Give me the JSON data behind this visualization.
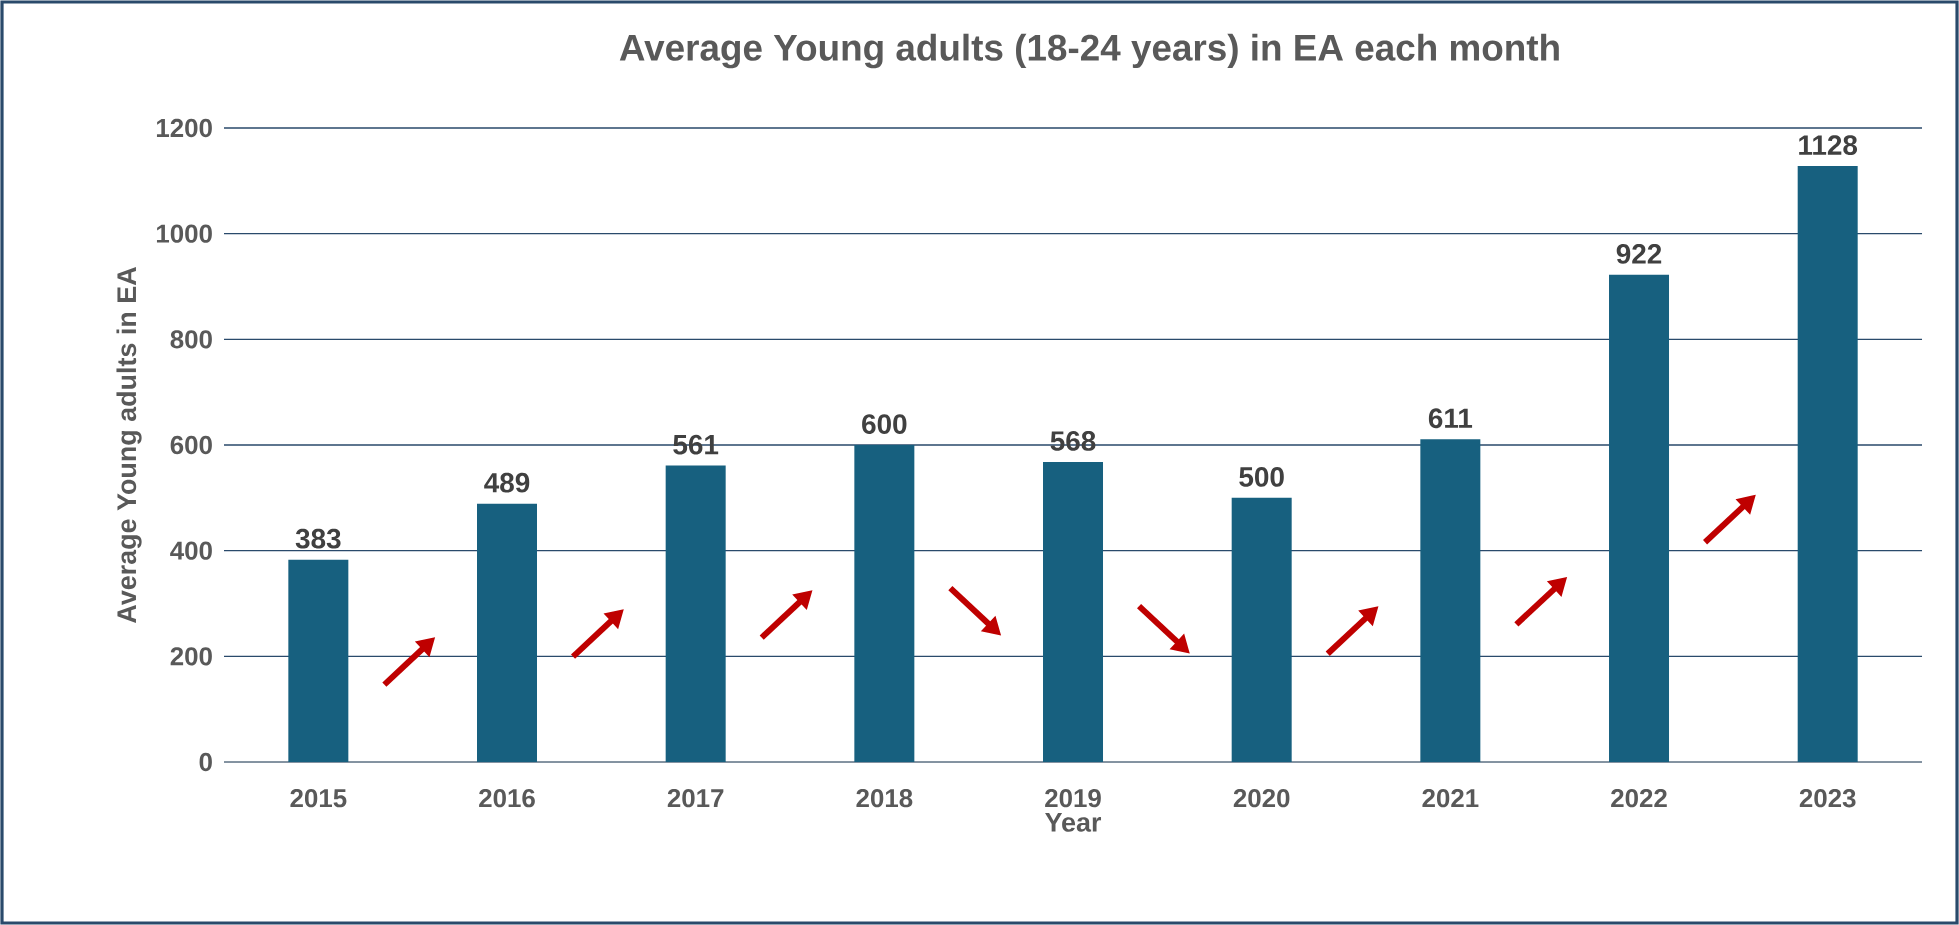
{
  "chart_data": {
    "type": "bar",
    "title": "Average Young adults (18-24 years) in EA each month",
    "xlabel": "Year",
    "ylabel": "Average Young adults in EA",
    "categories": [
      "2015",
      "2016",
      "2017",
      "2018",
      "2019",
      "2020",
      "2021",
      "2022",
      "2023"
    ],
    "values": [
      383,
      489,
      561,
      600,
      568,
      500,
      611,
      922,
      1128
    ],
    "color": "#17607f",
    "ylim": [
      0,
      1200
    ],
    "yticks": [
      0,
      200,
      400,
      600,
      800,
      1000,
      1200
    ],
    "grid": "y",
    "data_labels": true
  }
}
